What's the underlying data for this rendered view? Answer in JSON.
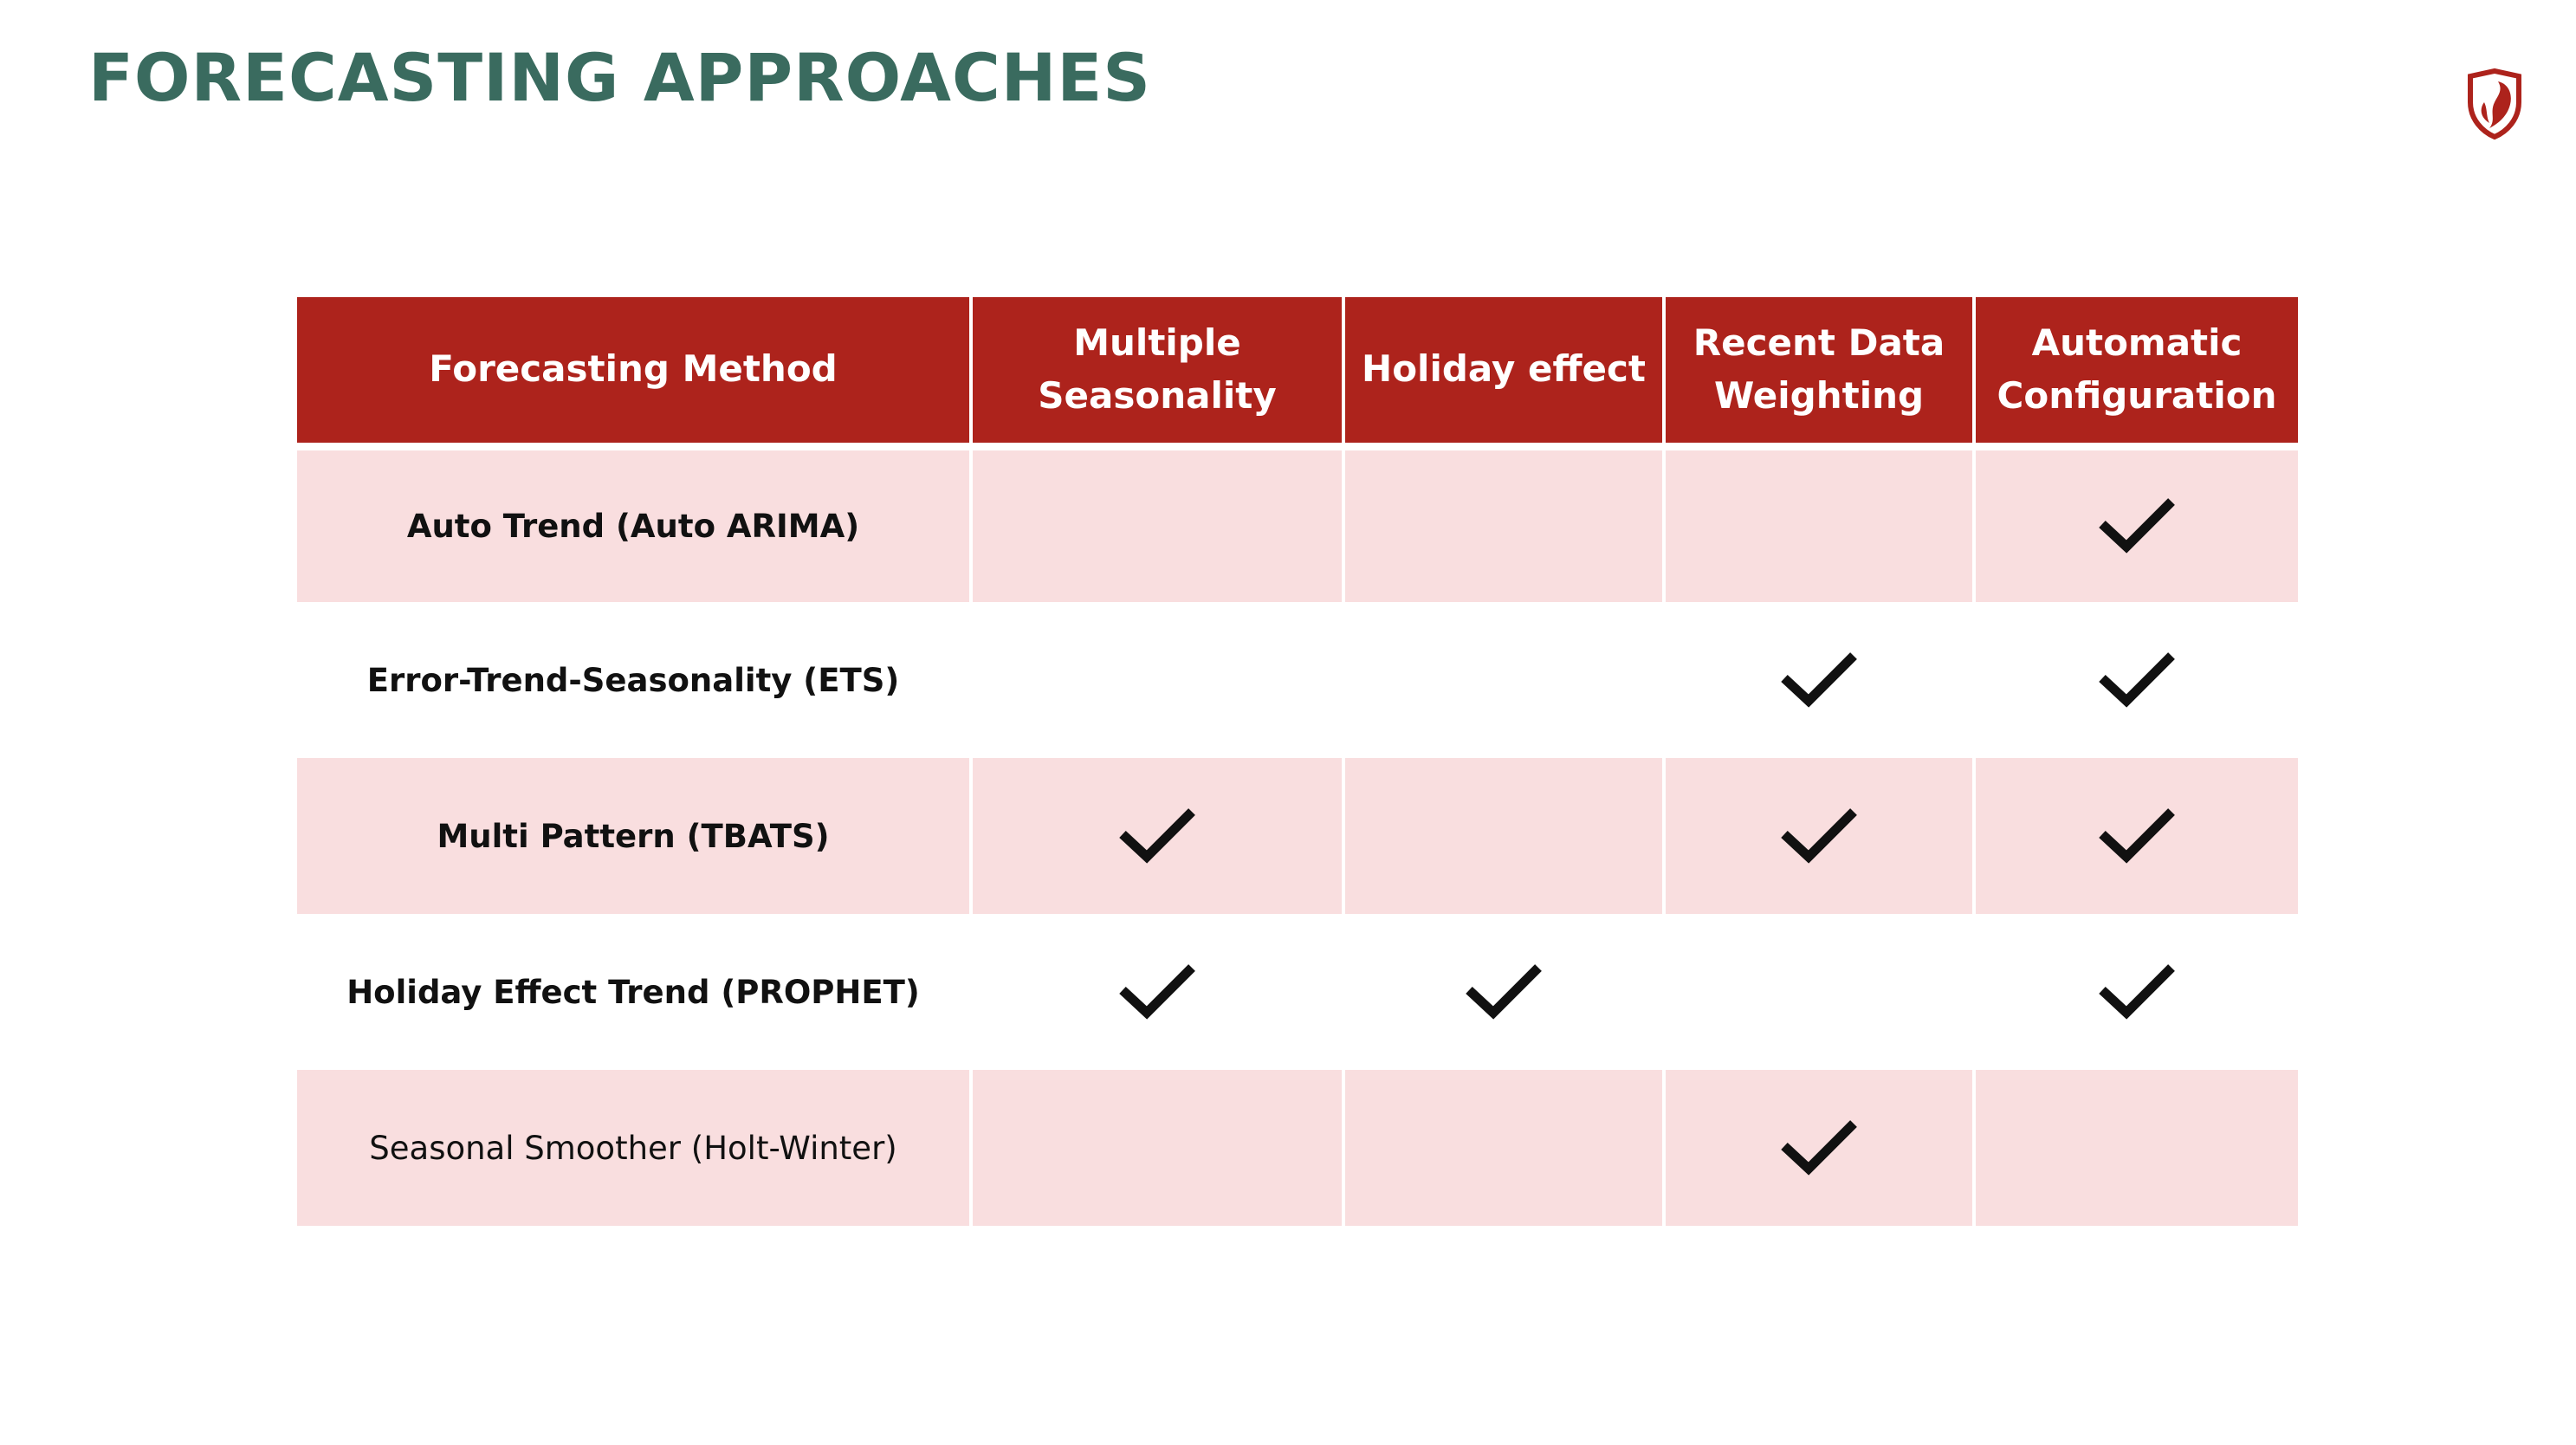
{
  "slide": {
    "title": "FORECASTING APPROACHES",
    "logo_icon": "shield-flame-logo-icon"
  },
  "colors": {
    "title": "#3a6b5f",
    "header_bg": "#ad231c",
    "shaded_row": "#f9dedf",
    "check": "#111111"
  },
  "table": {
    "columns": [
      "Forecasting Method",
      "Multiple Seasonality",
      "Holiday effect",
      "Recent Data Weighting",
      "Automatic Configuration"
    ],
    "rows": [
      {
        "method": "Auto Trend (Auto ARIMA)",
        "checks": [
          false,
          false,
          false,
          true
        ]
      },
      {
        "method": "Error-Trend-Seasonality (ETS)",
        "checks": [
          false,
          false,
          true,
          true
        ]
      },
      {
        "method": "Multi Pattern (TBATS)",
        "checks": [
          true,
          false,
          true,
          true
        ]
      },
      {
        "method": "Holiday Effect Trend (PROPHET)",
        "checks": [
          true,
          true,
          false,
          true
        ]
      },
      {
        "method": "Seasonal Smoother (Holt-Winter)",
        "checks": [
          false,
          false,
          true,
          false
        ]
      }
    ],
    "check_icon": "checkmark-icon"
  }
}
